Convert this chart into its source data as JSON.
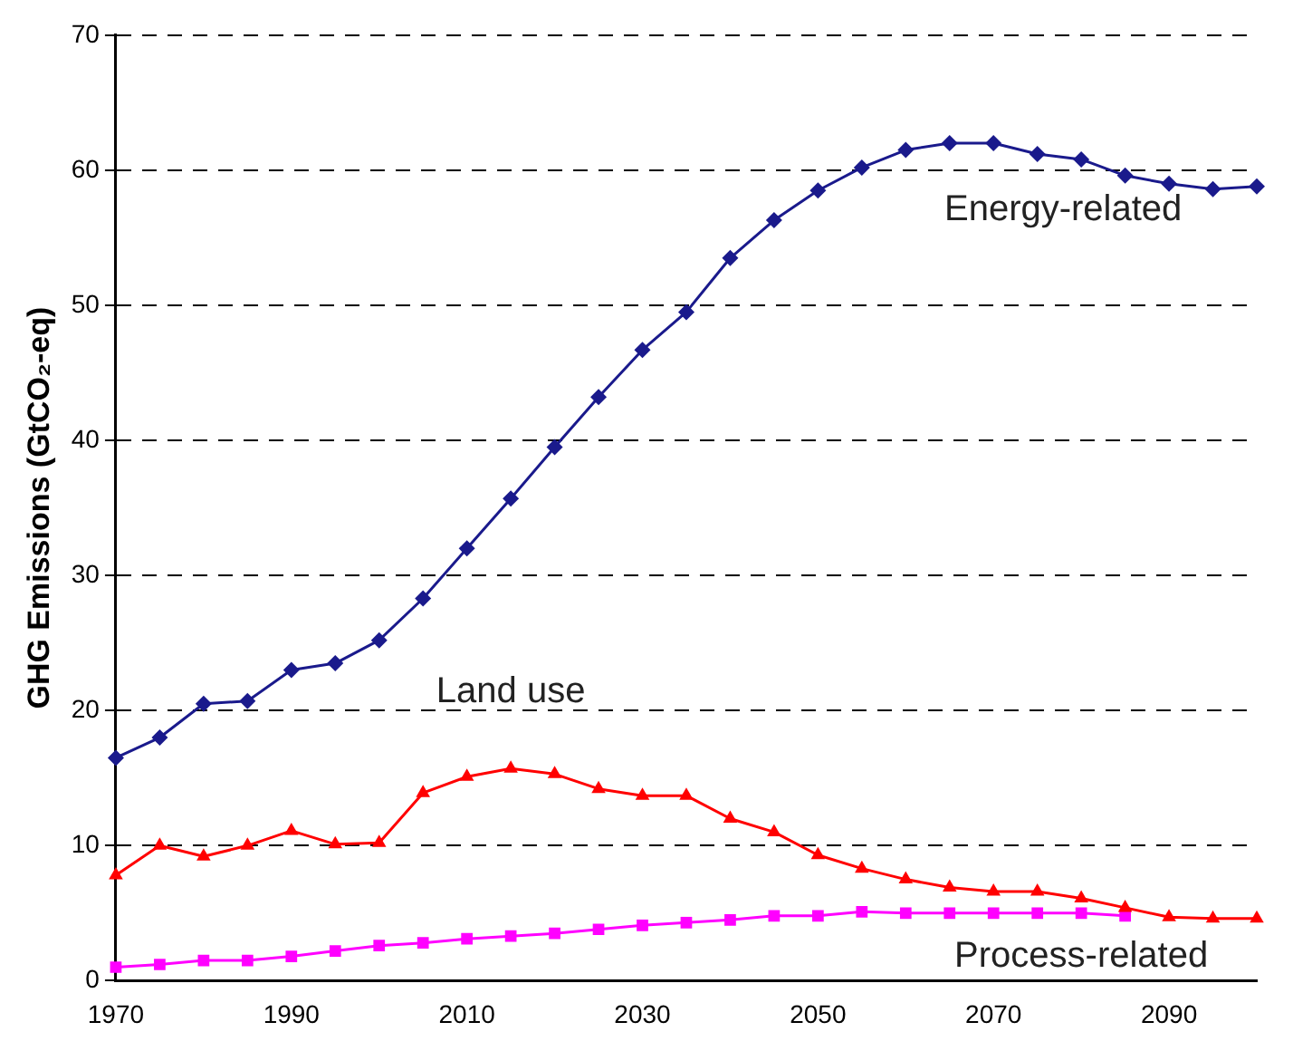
{
  "chart_data": {
    "type": "line",
    "ylabel": "GHG Emissions (GtCO₂-eq)",
    "categories": [
      "1970",
      null,
      null,
      null,
      "1990",
      null,
      null,
      null,
      "2010",
      null,
      null,
      null,
      "2030",
      null,
      null,
      null,
      "2050",
      null,
      null,
      null,
      "2070",
      null,
      null,
      null,
      "2090",
      null,
      null
    ],
    "series": [
      {
        "name": "Energy-related",
        "color": "#1a1a8c",
        "marker": "diamond",
        "values": [
          16.5,
          18,
          20.5,
          20.7,
          23,
          23.5,
          25.2,
          28.3,
          32,
          35.7,
          39.5,
          43.2,
          46.7,
          49.5,
          53.5,
          56.3,
          58.5,
          60.2,
          61.5,
          62,
          62,
          61.2,
          60.8,
          59.6,
          59,
          58.6,
          58.8
        ]
      },
      {
        "name": "Land use",
        "color": "#ff0000",
        "marker": "triangle",
        "values": [
          7.8,
          10,
          9.2,
          10,
          11.1,
          10.1,
          10.2,
          13.9,
          15.1,
          15.7,
          15.3,
          14.2,
          13.7,
          13.7,
          12,
          11,
          9.3,
          8.3,
          7.5,
          6.9,
          6.6,
          6.6,
          6.1,
          5.4,
          4.7,
          4.6,
          4.6
        ]
      },
      {
        "name": "Process-related",
        "color": "#ff00ff",
        "marker": "square",
        "values": [
          1,
          1.2,
          1.5,
          1.5,
          1.8,
          2.2,
          2.6,
          2.8,
          3.1,
          3.3,
          3.5,
          3.8,
          4.1,
          4.3,
          4.5,
          4.8,
          4.8,
          5.1,
          5,
          5,
          5,
          5,
          5,
          4.8,
          null,
          null,
          null
        ]
      }
    ],
    "ylim": [
      0,
      70
    ],
    "yticks": [
      0,
      10,
      20,
      30,
      40,
      50,
      60,
      70
    ],
    "grid": "y",
    "line_style": "solid",
    "legend": false
  }
}
